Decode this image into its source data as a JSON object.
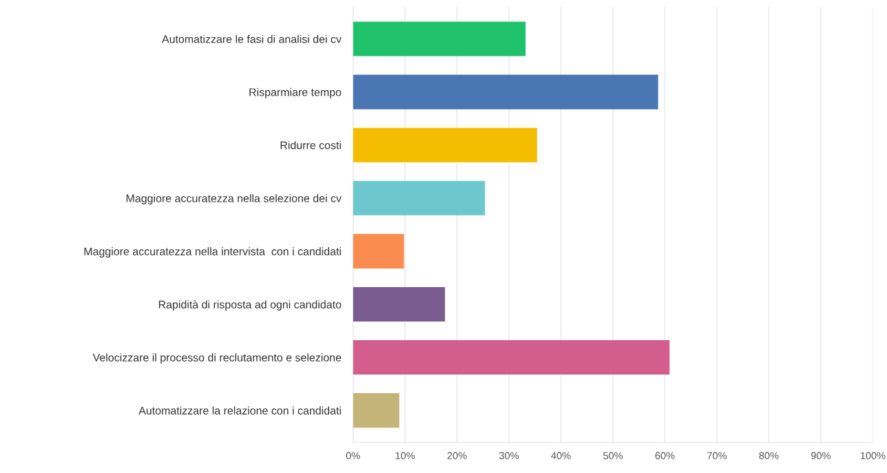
{
  "chart_data": {
    "type": "bar",
    "orientation": "horizontal",
    "categories": [
      "Automatizzare le fasi di analisi dei cv",
      "Risparmiare tempo",
      "Ridurre costi",
      "Maggiore accuratezza nella selezione dei cv",
      "Maggiore accuratezza nella intervista  con i candidati",
      "Rapidità di risposta ad ogni candidato",
      "Velocizzare il processo di reclutamento e selezione",
      "Automatizzare la relazione con i candidati"
    ],
    "values": [
      33.2,
      58.7,
      35.4,
      25.4,
      9.8,
      17.7,
      60.9,
      8.9
    ],
    "colors": [
      "#1fc26b",
      "#4a76b4",
      "#f5bd00",
      "#6cc8cc",
      "#fb8c4f",
      "#7b5c91",
      "#d35e8e",
      "#c5b477"
    ],
    "xlim": [
      0,
      100
    ],
    "xticks": [
      {
        "value": 0,
        "label": "0%"
      },
      {
        "value": 10,
        "label": "10%"
      },
      {
        "value": 20,
        "label": "20%"
      },
      {
        "value": 30,
        "label": "30%"
      },
      {
        "value": 40,
        "label": "40%"
      },
      {
        "value": 50,
        "label": "50%"
      },
      {
        "value": 60,
        "label": "60%"
      },
      {
        "value": 70,
        "label": "70%"
      },
      {
        "value": 80,
        "label": "80%"
      },
      {
        "value": 90,
        "label": "90%"
      },
      {
        "value": 100,
        "label": "100%"
      }
    ],
    "grid": "x"
  }
}
